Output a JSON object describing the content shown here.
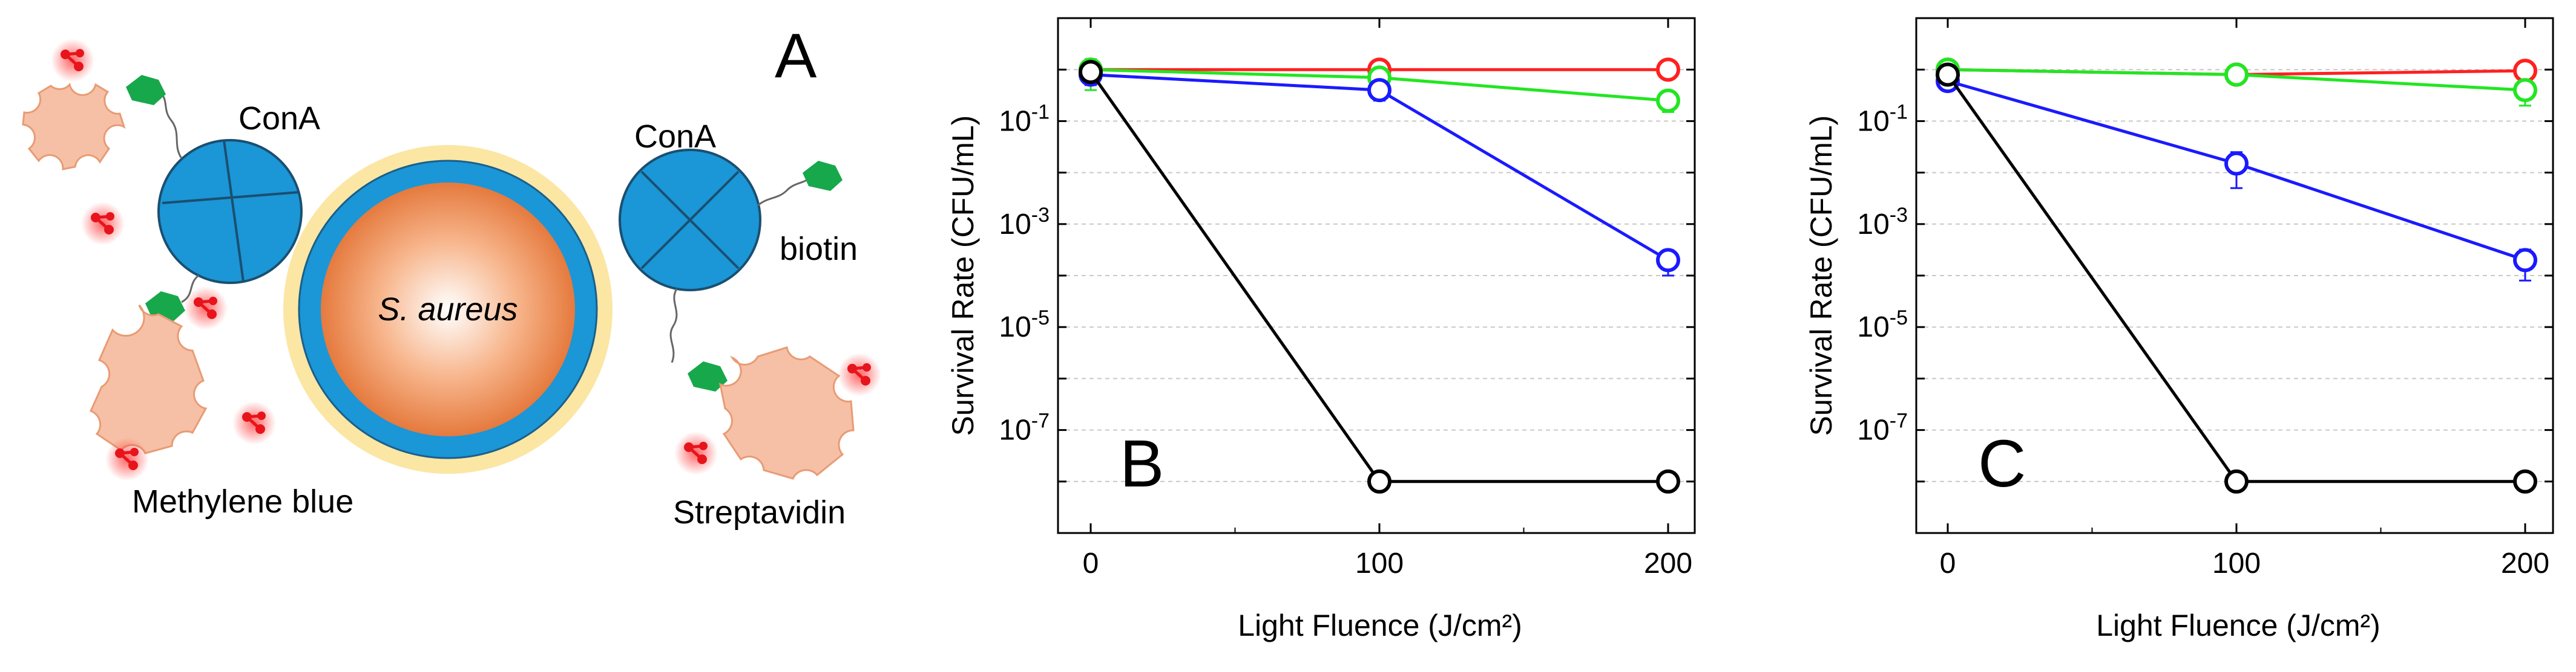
{
  "panel_a": {
    "letter": "A",
    "bacterium_label": "S. aureus",
    "cona_label_left": "ConA",
    "cona_label_right": "ConA",
    "biotin_label": "biotin",
    "methylene_blue_label": "Methylene blue",
    "streptavidin_label": "Streptavidin"
  },
  "colors": {
    "red": "#ff2020",
    "green": "#22e622",
    "blue": "#1a1aff",
    "black": "#000000",
    "cona": "#1b96d6",
    "streptavidin_fill": "#f6c0a6",
    "streptavidin_stroke": "#e89b74",
    "biotin": "#17a84b",
    "halo": "#fbe6a4",
    "dye": "#e8141c"
  },
  "chart_data": [
    {
      "type": "line",
      "panel_letter": "B",
      "xlabel": "Light Fluence (J/cm²)",
      "ylabel": "Survival Rate (CFU/mL)",
      "x": [
        0,
        100,
        200
      ],
      "x_ticks": [
        "0",
        "100",
        "200"
      ],
      "y_scale": "log",
      "ylim": [
        1e-09,
        10
      ],
      "y_ticks": [
        {
          "value": 0.1,
          "base": "10",
          "exp": "-1"
        },
        {
          "value": 0.001,
          "base": "10",
          "exp": "-3"
        },
        {
          "value": 1e-05,
          "base": "10",
          "exp": "-5"
        },
        {
          "value": 1e-07,
          "base": "10",
          "exp": "-7"
        }
      ],
      "grid": true,
      "series": [
        {
          "name": "red",
          "color": "#ff2020",
          "values": [
            1.0,
            1.0,
            1.0
          ],
          "err": [
            0,
            0,
            0
          ]
        },
        {
          "name": "green",
          "color": "#22e622",
          "values": [
            1.0,
            0.7,
            0.25
          ],
          "err": [
            0.6,
            0,
            0.1
          ]
        },
        {
          "name": "blue",
          "color": "#1a1aff",
          "values": [
            0.8,
            0.4,
            0.0002
          ],
          "err": [
            0.3,
            0.15,
            0.0001
          ]
        },
        {
          "name": "black",
          "color": "#000000",
          "values": [
            0.9,
            1e-08,
            1e-08
          ],
          "err": [
            0,
            0,
            0
          ]
        }
      ]
    },
    {
      "type": "line",
      "panel_letter": "C",
      "xlabel": "Light Fluence (J/cm²)",
      "ylabel": "Survival Rate (CFU/mL)",
      "x": [
        0,
        100,
        200
      ],
      "x_ticks": [
        "0",
        "100",
        "200"
      ],
      "y_scale": "log",
      "ylim": [
        1e-09,
        10
      ],
      "y_ticks": [
        {
          "value": 0.1,
          "base": "10",
          "exp": "-1"
        },
        {
          "value": 0.001,
          "base": "10",
          "exp": "-3"
        },
        {
          "value": 1e-05,
          "base": "10",
          "exp": "-5"
        },
        {
          "value": 1e-07,
          "base": "10",
          "exp": "-7"
        }
      ],
      "grid": true,
      "series": [
        {
          "name": "red",
          "color": "#ff2020",
          "values": [
            1.0,
            0.8,
            0.95
          ],
          "err": [
            0,
            0,
            0
          ]
        },
        {
          "name": "green",
          "color": "#22e622",
          "values": [
            1.0,
            0.8,
            0.4
          ],
          "err": [
            0,
            0.2,
            0.2
          ]
        },
        {
          "name": "blue",
          "color": "#1a1aff",
          "values": [
            0.6,
            0.015,
            0.0002
          ],
          "err": [
            0.2,
            0.01,
            0.00012
          ]
        },
        {
          "name": "black",
          "color": "#000000",
          "values": [
            0.8,
            1e-08,
            1e-08
          ],
          "err": [
            0,
            0,
            0
          ]
        }
      ]
    }
  ]
}
